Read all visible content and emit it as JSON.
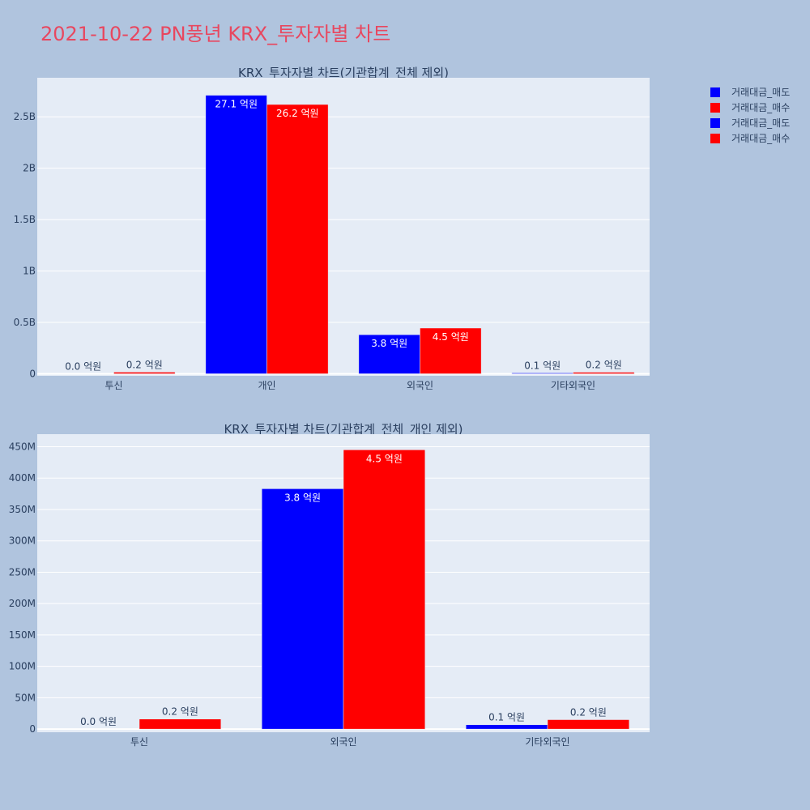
{
  "title": "2021-10-22 PN풍년 KRX_투자자별 차트",
  "legend": [
    {
      "label": "거래대금_매도",
      "color": "#0000ff"
    },
    {
      "label": "거래대금_매수",
      "color": "#ff0000"
    },
    {
      "label": "거래대금_매도",
      "color": "#0000ff"
    },
    {
      "label": "거래대금_매수",
      "color": "#ff0000"
    }
  ],
  "chart_data": [
    {
      "type": "bar",
      "title": "KRX_투자자별 차트(기관합계_전체 제외)",
      "categories": [
        "투신",
        "개인",
        "외국인",
        "기타외국인"
      ],
      "series": [
        {
          "name": "거래대금_매도",
          "color": "#0000ff",
          "values": [
            0,
            2710000000,
            380000000,
            8000000
          ],
          "labels": [
            "0.0 억원",
            "27.1 억원",
            "3.8 억원",
            "0.1 억원"
          ]
        },
        {
          "name": "거래대금_매수",
          "color": "#ff0000",
          "values": [
            16000000,
            2620000000,
            445000000,
            15000000
          ],
          "labels": [
            "0.2 억원",
            "26.2 억원",
            "4.5 억원",
            "0.2 억원"
          ]
        }
      ],
      "ylim": [
        -20000000,
        2880000000
      ],
      "yticks": [
        0,
        500000000,
        1000000000,
        1500000000,
        2000000000,
        2500000000
      ],
      "ytick_labels": [
        "0",
        "0.5B",
        "1B",
        "1.5B",
        "2B",
        "2.5B"
      ]
    },
    {
      "type": "bar",
      "title": "KRX_투자자별 차트(기관합계_전체_개인 제외)",
      "categories": [
        "투신",
        "외국인",
        "기타외국인"
      ],
      "series": [
        {
          "name": "거래대금_매도",
          "color": "#0000ff",
          "values": [
            0,
            383000000,
            7000000
          ],
          "labels": [
            "0.0 억원",
            "3.8 억원",
            "0.1 억원"
          ]
        },
        {
          "name": "거래대금_매수",
          "color": "#ff0000",
          "values": [
            16000000,
            445000000,
            15000000
          ],
          "labels": [
            "0.2 억원",
            "4.5 억원",
            "0.2 억원"
          ]
        }
      ],
      "ylim": [
        -5000000,
        470000000
      ],
      "yticks": [
        0,
        50000000,
        100000000,
        150000000,
        200000000,
        250000000,
        300000000,
        350000000,
        400000000,
        450000000
      ],
      "ytick_labels": [
        "0",
        "50M",
        "100M",
        "150M",
        "200M",
        "250M",
        "300M",
        "350M",
        "400M",
        "450M"
      ]
    }
  ]
}
